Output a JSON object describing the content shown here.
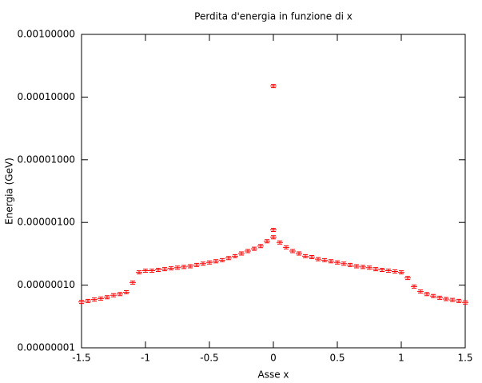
{
  "chart_data": {
    "type": "scatter",
    "title": "Perdita d'energia in funzione di x",
    "xlabel": "Asse x",
    "ylabel": "Energia (GeV)",
    "color": "#ff0000",
    "ylog": true,
    "xlim": [
      -1.5,
      1.5
    ],
    "xticks": [
      -1.5,
      -1,
      -0.5,
      0,
      0.5,
      1,
      1.5
    ],
    "ylim": [
      1e-08,
      0.001
    ],
    "yticks": [
      {
        "value": 1e-08,
        "label": "0.00000001"
      },
      {
        "value": 1e-07,
        "label": "0.00000010"
      },
      {
        "value": 1e-06,
        "label": "0.00000100"
      },
      {
        "value": 1e-05,
        "label": "0.00001000"
      },
      {
        "value": 0.0001,
        "label": "0.00010000"
      },
      {
        "value": 0.001,
        "label": "0.00100000"
      }
    ],
    "x": [
      -1.5,
      -1.45,
      -1.4,
      -1.35,
      -1.3,
      -1.25,
      -1.2,
      -1.15,
      -1.1,
      -1.05,
      -1.0,
      -0.95,
      -0.9,
      -0.85,
      -0.8,
      -0.75,
      -0.7,
      -0.65,
      -0.6,
      -0.55,
      -0.5,
      -0.45,
      -0.4,
      -0.35,
      -0.3,
      -0.25,
      -0.2,
      -0.15,
      -0.1,
      -0.05,
      0,
      0.05,
      0.1,
      0.15,
      0.2,
      0.25,
      0.3,
      0.35,
      0.4,
      0.45,
      0.5,
      0.55,
      0.6,
      0.65,
      0.7,
      0.75,
      0.8,
      0.85,
      0.9,
      0.95,
      1.0,
      1.05,
      1.1,
      1.15,
      1.2,
      1.25,
      1.3,
      1.35,
      1.4,
      1.45,
      1.5,
      0,
      0
    ],
    "values": [
      5.4e-08,
      5.6e-08,
      5.9e-08,
      6.1e-08,
      6.4e-08,
      6.9e-08,
      7.2e-08,
      7.7e-08,
      1.1e-07,
      1.6e-07,
      1.7e-07,
      1.7e-07,
      1.75e-07,
      1.8e-07,
      1.85e-07,
      1.9e-07,
      1.95e-07,
      2e-07,
      2.1e-07,
      2.2e-07,
      2.3e-07,
      2.4e-07,
      2.5e-07,
      2.7e-07,
      2.9e-07,
      3.2e-07,
      3.5e-07,
      3.8e-07,
      4.2e-07,
      5e-07,
      5.8e-07,
      4.8e-07,
      4e-07,
      3.5e-07,
      3.2e-07,
      2.9e-07,
      2.8e-07,
      2.6e-07,
      2.5e-07,
      2.4e-07,
      2.3e-07,
      2.2e-07,
      2.1e-07,
      2e-07,
      1.95e-07,
      1.9e-07,
      1.8e-07,
      1.75e-07,
      1.7e-07,
      1.65e-07,
      1.6e-07,
      1.3e-07,
      9.5e-08,
      7.9e-08,
      7.2e-08,
      6.7e-08,
      6.3e-08,
      6e-08,
      5.8e-08,
      5.6e-08,
      5.3e-08,
      7.6e-07,
      0.00015
    ]
  }
}
